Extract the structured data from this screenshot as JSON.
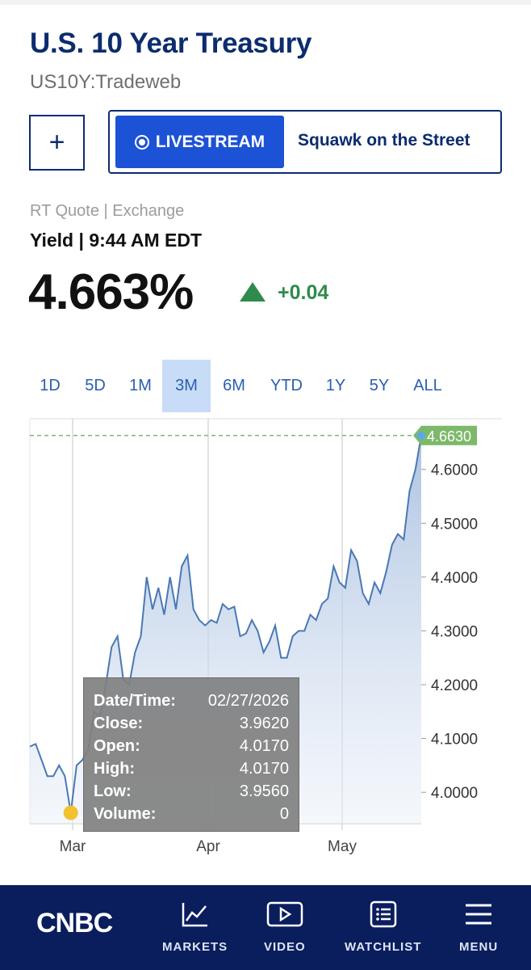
{
  "header": {
    "title": "U.S. 10 Year Treasury",
    "symbol": "US10Y:Tradeweb"
  },
  "actions": {
    "plus_label": "+",
    "livestream_label": "LIVESTREAM",
    "show_name": "Squawk on the Street"
  },
  "quote": {
    "source": "RT Quote | Exchange",
    "yield_time": "Yield | 9:44 AM EDT",
    "price": "4.663%",
    "change": "+0.04",
    "change_color": "#2e8b4b"
  },
  "range_tabs": [
    {
      "label": "1D",
      "active": false
    },
    {
      "label": "5D",
      "active": false
    },
    {
      "label": "1M",
      "active": false
    },
    {
      "label": "3M",
      "active": true
    },
    {
      "label": "6M",
      "active": false
    },
    {
      "label": "YTD",
      "active": false
    },
    {
      "label": "1Y",
      "active": false
    },
    {
      "label": "5Y",
      "active": false
    },
    {
      "label": "ALL",
      "active": false
    }
  ],
  "chart_data": {
    "type": "area",
    "x_labels": [
      "Mar",
      "Apr",
      "May"
    ],
    "y_ticks": [
      "4.6000",
      "4.5000",
      "4.4000",
      "4.3000",
      "4.2000",
      "4.1000",
      "4.0000"
    ],
    "ylim": [
      3.94,
      4.69
    ],
    "last_value_label": "4.6630",
    "last_value": 4.663,
    "series": [
      {
        "values": [
          4.085,
          4.09,
          4.06,
          4.03,
          4.03,
          4.05,
          4.03,
          3.962,
          4.05,
          4.06,
          4.08,
          4.15,
          4.14,
          4.2,
          4.27,
          4.29,
          4.21,
          4.2,
          4.26,
          4.29,
          4.4,
          4.34,
          4.38,
          4.33,
          4.4,
          4.34,
          4.42,
          4.44,
          4.34,
          4.32,
          4.31,
          4.32,
          4.315,
          4.35,
          4.34,
          4.345,
          4.29,
          4.295,
          4.32,
          4.3,
          4.26,
          4.28,
          4.31,
          4.25,
          4.25,
          4.29,
          4.3,
          4.3,
          4.33,
          4.32,
          4.35,
          4.36,
          4.42,
          4.39,
          4.38,
          4.45,
          4.43,
          4.37,
          4.35,
          4.39,
          4.37,
          4.41,
          4.46,
          4.48,
          4.47,
          4.56,
          4.6,
          4.663
        ],
        "color": "#4a78b5"
      }
    ],
    "accent_line_color": "#2e8b4b",
    "last_value_badge_color": "#7cb96a",
    "highlight_point_color": "#f2c230"
  },
  "tooltip": {
    "rows": [
      {
        "label": "Date/Time:",
        "value": "02/27/2026"
      },
      {
        "label": "Close:",
        "value": "3.9620"
      },
      {
        "label": "Open:",
        "value": "4.0170"
      },
      {
        "label": "High:",
        "value": "4.0170"
      },
      {
        "label": "Low:",
        "value": "3.9560"
      },
      {
        "label": "Volume:",
        "value": "0"
      }
    ]
  },
  "nav": {
    "logo": "CNBC",
    "items": [
      {
        "label": "MARKETS",
        "icon": "chart-line-icon"
      },
      {
        "label": "VIDEO",
        "icon": "play-icon"
      },
      {
        "label": "WATCHLIST",
        "icon": "list-icon"
      },
      {
        "label": "MENU",
        "icon": "hamburger-icon"
      }
    ]
  }
}
